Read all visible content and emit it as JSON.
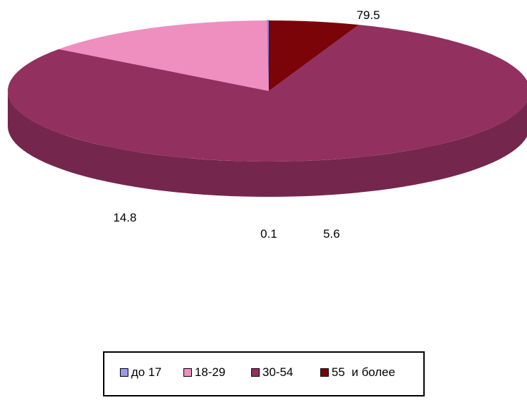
{
  "chart_data": {
    "type": "pie",
    "categories": [
      "до 17",
      "18-29",
      "30-54",
      "55  и более"
    ],
    "values": [
      0.1,
      14.8,
      79.5,
      5.6
    ],
    "data_labels": [
      "0.1",
      "14.8",
      "79.5",
      "5.6"
    ],
    "colors": [
      "#9999ee",
      "#ee8fc0",
      "#923060",
      "#7a0408"
    ],
    "legend_position": "bottom",
    "style": "3d"
  },
  "legend": {
    "items": [
      {
        "label": "до 17"
      },
      {
        "label": "18-29"
      },
      {
        "label": "30-54"
      },
      {
        "label": "55  и более"
      }
    ]
  }
}
